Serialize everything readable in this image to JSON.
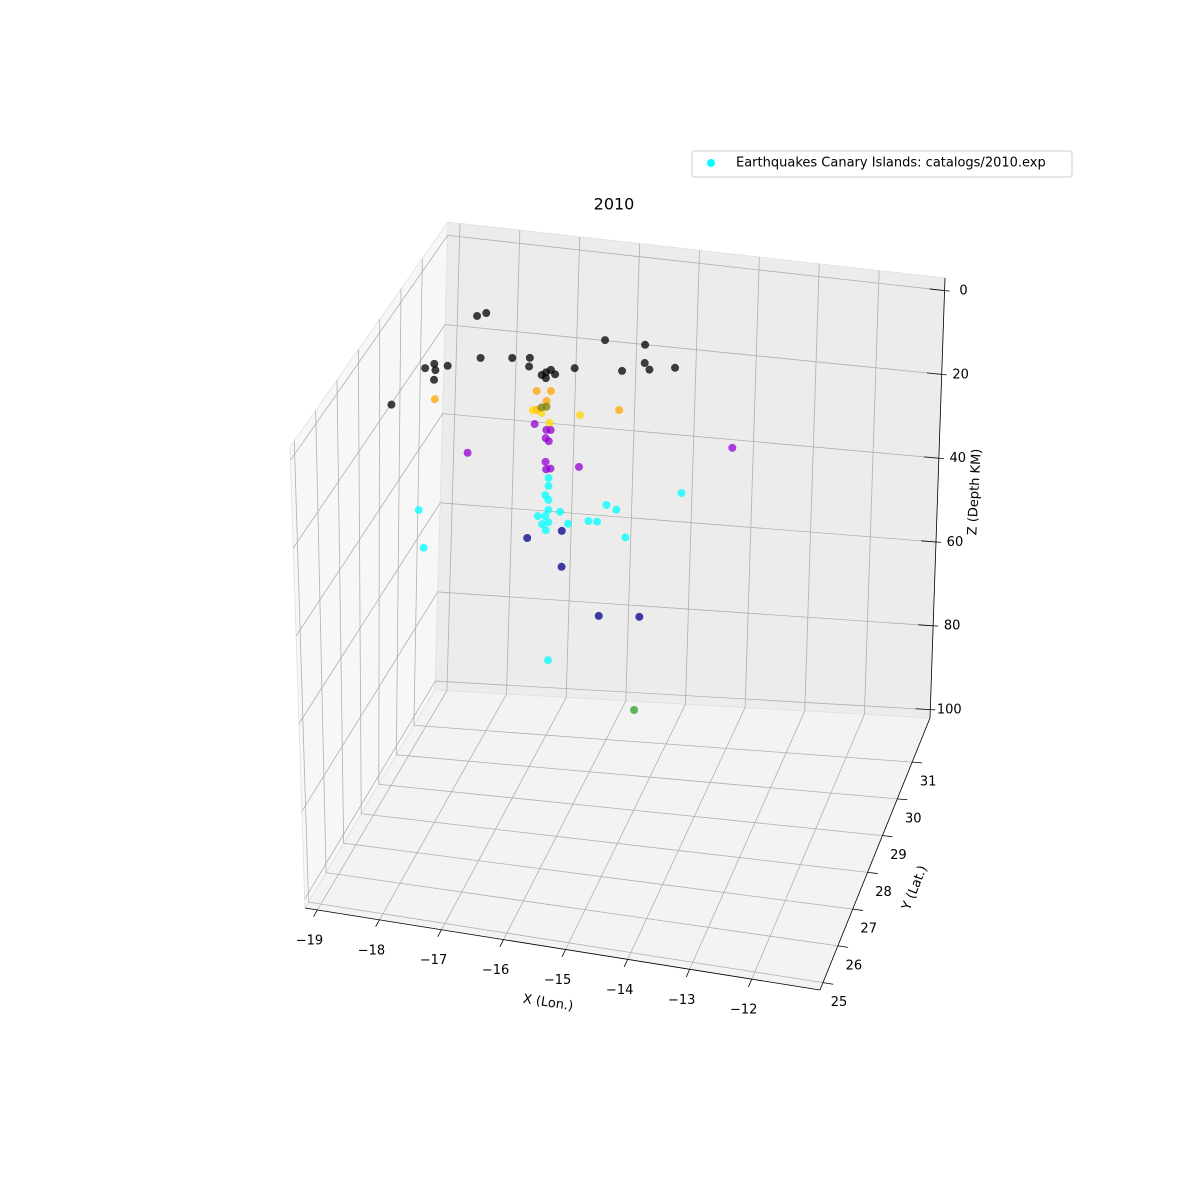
{
  "chart_data": {
    "type": "scatter3d",
    "title": "2010",
    "xlabel": "X (Lon.)",
    "ylabel": "Y (Lat.)",
    "zlabel": "Z (Depth KM)",
    "xlim": [
      -19.2,
      -10.9
    ],
    "ylim": [
      24.8,
      32.2
    ],
    "zlim": [
      102,
      -3
    ],
    "xticks": [
      {
        "value": -19,
        "label": "−19"
      },
      {
        "value": -18,
        "label": "−18"
      },
      {
        "value": -17,
        "label": "−17"
      },
      {
        "value": -16,
        "label": "−16"
      },
      {
        "value": -15,
        "label": "−15"
      },
      {
        "value": -14,
        "label": "−14"
      },
      {
        "value": -13,
        "label": "−13"
      },
      {
        "value": -12,
        "label": "−12"
      }
    ],
    "yticks": [
      25,
      26,
      27,
      28,
      29,
      30,
      31
    ],
    "zticks": [
      0,
      20,
      40,
      60,
      80,
      100
    ],
    "grid": true,
    "legend": "upper right",
    "series": [
      {
        "name": "Earthquakes Canary Islands: catalogs/2010.exp",
        "color": "#00ffff",
        "x": [
          -18.19,
          -18.04,
          -16.08,
          -15.42,
          -18.88,
          -18.66,
          -19.03,
          -18.86,
          -18.88,
          -18.12,
          -17.6,
          -17.31,
          -17.32,
          -17.11,
          -17.04,
          -16.96,
          -16.89,
          -17.04,
          -16.57,
          -15.79,
          -15.42,
          -15.34,
          -14.92,
          -18.84,
          -16.5,
          -16.27,
          -16.34,
          -18.14,
          -15.17,
          -16.5,
          -16.56,
          -16.42,
          -16.29,
          -15.8,
          -16.42,
          -16.34,
          -16.53,
          -16.34,
          -16.27,
          -16.35,
          -16.3,
          -16.35,
          -16.34,
          -16.27,
          -15.81,
          -17.61,
          -13.34,
          -16.3,
          -16.3,
          -16.35,
          -16.3,
          -16.3,
          -16.35,
          -16.47,
          -16.11,
          -16.3,
          -16.34,
          -16.4,
          -15.98,
          -15.65,
          -15.51,
          -15.36,
          -15.2,
          -15.05,
          -14.15,
          -18.4,
          -18.32,
          -16.29,
          -16.64,
          -16.08,
          -16.08,
          -15.47,
          -14.81,
          -14.88
        ],
        "y": [
          30.72,
          30.72,
          30.72,
          30.72,
          30.72,
          30.72,
          30.72,
          30.72,
          30.72,
          30.72,
          30.72,
          30.72,
          30.72,
          30.72,
          30.72,
          30.72,
          30.72,
          30.72,
          30.72,
          30.72,
          30.72,
          30.72,
          30.72,
          28.5,
          28.5,
          28.5,
          28.5,
          28.5,
          28.5,
          28.5,
          28.5,
          28.5,
          28.5,
          28.5,
          28.5,
          28.5,
          28.5,
          28.5,
          28.5,
          28.5,
          28.5,
          28.5,
          28.5,
          28.5,
          28.5,
          28.5,
          28.5,
          28.5,
          28.5,
          28.5,
          28.5,
          28.5,
          28.5,
          28.5,
          28.5,
          28.5,
          28.5,
          28.5,
          28.5,
          28.5,
          28.5,
          28.5,
          28.5,
          28.5,
          28.5,
          28.5,
          28.5,
          28.5,
          28.5,
          28.5,
          28.5,
          28.5,
          28.5,
          28.5
        ],
        "z": [
          6.4,
          5.5,
          8.5,
          8.5,
          18.3,
          18.4,
          19.5,
          19.7,
          21.9,
          15.8,
          15.0,
          14.5,
          16.5,
          18.1,
          17.4,
          16.7,
          17.6,
          18.7,
          15.7,
          15.1,
          12.7,
          14.1,
          13.0,
          12.2,
          4.8,
          4.4,
          6.8,
          9.7,
          6.7,
          9.1,
          9.3,
          9.7,
          11.7,
          9.0,
          8.4,
          8.1,
          12.4,
          13.4,
          13.3,
          15.3,
          15.9,
          20.7,
          22.4,
          22.1,
          20.9,
          20.9,
          12.0,
          24.3,
          26.1,
          28.3,
          29.3,
          31.6,
          33.1,
          33.3,
          31.7,
          34.4,
          36.3,
          35.0,
          34.2,
          33.0,
          32.9,
          28.8,
          29.6,
          35.7,
          23.9,
          35.3,
          43.7,
          65.9,
          38.6,
          36.0,
          44.2,
          54.4,
          53.5,
          75.0
        ],
        "colors": [
          "#000000",
          "#000000",
          "#000000",
          "#000000",
          "#000000",
          "#000000",
          "#000000",
          "#000000",
          "#000000",
          "#000000",
          "#000000",
          "#000000",
          "#000000",
          "#000000",
          "#000000",
          "#000000",
          "#000000",
          "#000000",
          "#000000",
          "#000000",
          "#000000",
          "#000000",
          "#000000",
          "#000000",
          "#ffa500",
          "#ffa500",
          "#ffa500",
          "#ffa500",
          "#ffa500",
          "#ffa500",
          "#ffd700",
          "#ffd700",
          "#ffd700",
          "#ffd700",
          "#808000",
          "#808000",
          "#9400d3",
          "#9400d3",
          "#9400d3",
          "#9400d3",
          "#9400d3",
          "#9400d3",
          "#9400d3",
          "#9400d3",
          "#9400d3",
          "#9400d3",
          "#9400d3",
          "#00ffff",
          "#00ffff",
          "#00ffff",
          "#00ffff",
          "#00ffff",
          "#00ffff",
          "#00ffff",
          "#00ffff",
          "#00ffff",
          "#00ffff",
          "#00ffff",
          "#00ffff",
          "#00ffff",
          "#00ffff",
          "#00ffff",
          "#00ffff",
          "#00ffff",
          "#00ffff",
          "#00ffff",
          "#00ffff",
          "#00ffff",
          "#00008b",
          "#00008b",
          "#00008b",
          "#00008b",
          "#00008b",
          "#2ca02c"
        ]
      }
    ]
  }
}
